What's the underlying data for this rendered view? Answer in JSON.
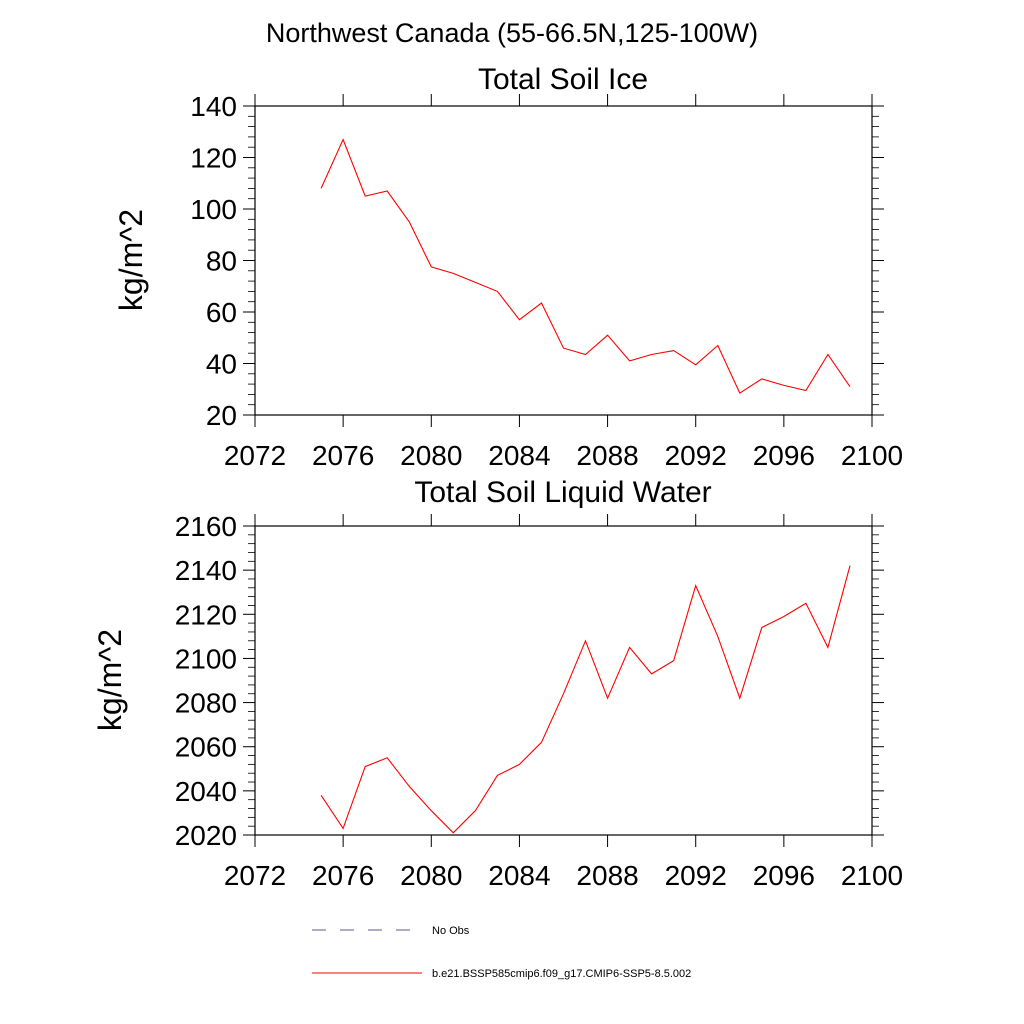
{
  "figure": {
    "title": "Northwest Canada (55-66.5N,125-100W)"
  },
  "legend": {
    "entries": [
      {
        "label": "No Obs",
        "color": "#5a5a8a",
        "style": "dashed"
      },
      {
        "label": "b.e21.BSSP585cmip6.f09_g17.CMIP6-SSP5-8.5.002",
        "color": "#ff0000",
        "style": "solid"
      }
    ]
  },
  "chart_data": [
    {
      "type": "line",
      "title": "Total Soil Ice",
      "xlabel": "",
      "ylabel": "kg/m^2",
      "xlim": [
        2072,
        2100
      ],
      "ylim": [
        20,
        140
      ],
      "xticks": [
        2072,
        2076,
        2080,
        2084,
        2088,
        2092,
        2096,
        2100
      ],
      "yticks": [
        20,
        40,
        60,
        80,
        100,
        120,
        140
      ],
      "grid": false,
      "series": [
        {
          "name": "b.e21.BSSP585cmip6.f09_g17.CMIP6-SSP5-8.5.002",
          "color": "#ff0000",
          "x": [
            2075,
            2076,
            2077,
            2078,
            2079,
            2080,
            2081,
            2082,
            2083,
            2084,
            2085,
            2086,
            2087,
            2088,
            2089,
            2090,
            2091,
            2092,
            2093,
            2094,
            2095,
            2096,
            2097,
            2098,
            2099
          ],
          "y": [
            108,
            127,
            105,
            107,
            95,
            77.5,
            75,
            71.5,
            68,
            57,
            63.5,
            46,
            43.5,
            51,
            41,
            43.5,
            45,
            39.5,
            47,
            28.5,
            34,
            31.5,
            29.5,
            43.5,
            31
          ]
        }
      ]
    },
    {
      "type": "line",
      "title": "Total Soil Liquid Water",
      "xlabel": "",
      "ylabel": "kg/m^2",
      "xlim": [
        2072,
        2100
      ],
      "ylim": [
        2020,
        2160
      ],
      "xticks": [
        2072,
        2076,
        2080,
        2084,
        2088,
        2092,
        2096,
        2100
      ],
      "yticks": [
        2020,
        2040,
        2060,
        2080,
        2100,
        2120,
        2140,
        2160
      ],
      "grid": false,
      "series": [
        {
          "name": "b.e21.BSSP585cmip6.f09_g17.CMIP6-SSP5-8.5.002",
          "color": "#ff0000",
          "x": [
            2075,
            2076,
            2077,
            2078,
            2079,
            2080,
            2081,
            2082,
            2083,
            2084,
            2085,
            2086,
            2087,
            2088,
            2089,
            2090,
            2091,
            2092,
            2093,
            2094,
            2095,
            2096,
            2097,
            2098,
            2099
          ],
          "y": [
            2038,
            2023,
            2051,
            2055,
            2042,
            2031,
            2021,
            2031,
            2047,
            2052,
            2062,
            2084,
            2108,
            2082,
            2105,
            2093,
            2099,
            2133,
            2110,
            2082,
            2114,
            2119,
            2125,
            2105,
            2142
          ]
        }
      ]
    }
  ]
}
